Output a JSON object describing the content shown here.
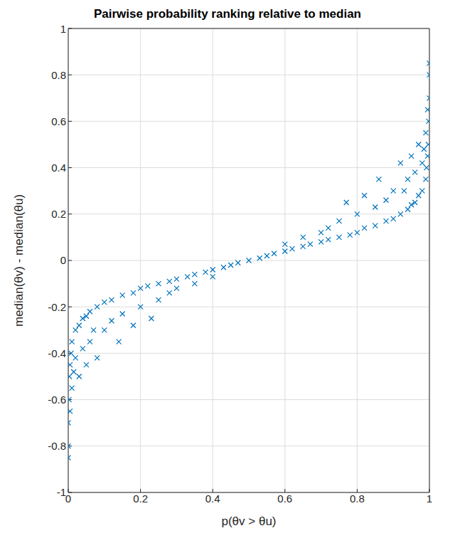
{
  "chart_data": {
    "type": "scatter",
    "title": "Pairwise probability ranking relative to median",
    "x_label": "p(θv > θu)",
    "y_label": "median(θv) - median(θu)",
    "x": [
      0,
      0,
      0,
      0.002,
      0.003,
      0.005,
      0.005,
      0.008,
      0.01,
      0.01,
      0.015,
      0.02,
      0.02,
      0.03,
      0.03,
      0.04,
      0.04,
      0.05,
      0.05,
      0.06,
      0.06,
      0.07,
      0.08,
      0.08,
      0.1,
      0.1,
      0.12,
      0.12,
      0.14,
      0.15,
      0.15,
      0.18,
      0.18,
      0.2,
      0.2,
      0.22,
      0.23,
      0.25,
      0.25,
      0.28,
      0.28,
      0.3,
      0.3,
      0.33,
      0.35,
      0.35,
      0.38,
      0.4,
      0.4,
      0.43,
      0.45,
      0.47,
      0.5,
      0.53,
      0.55,
      0.57,
      0.6,
      0.6,
      0.62,
      0.65,
      0.65,
      0.67,
      0.7,
      0.7,
      0.72,
      0.72,
      0.75,
      0.75,
      0.77,
      0.78,
      0.8,
      0.8,
      0.82,
      0.82,
      0.85,
      0.85,
      0.86,
      0.88,
      0.88,
      0.9,
      0.9,
      0.92,
      0.92,
      0.93,
      0.94,
      0.94,
      0.95,
      0.95,
      0.96,
      0.96,
      0.97,
      0.97,
      0.98,
      0.98,
      0.985,
      0.99,
      0.99,
      0.992,
      0.995,
      0.995,
      0.997,
      0.998,
      1,
      1,
      1
    ],
    "values": [
      -0.85,
      -0.8,
      -0.7,
      -0.6,
      -0.5,
      -0.45,
      -0.65,
      -0.4,
      -0.55,
      -0.35,
      -0.48,
      -0.3,
      -0.42,
      -0.28,
      -0.5,
      -0.25,
      -0.38,
      -0.24,
      -0.45,
      -0.22,
      -0.35,
      -0.3,
      -0.2,
      -0.42,
      -0.18,
      -0.3,
      -0.17,
      -0.26,
      -0.35,
      -0.15,
      -0.23,
      -0.14,
      -0.28,
      -0.12,
      -0.2,
      -0.11,
      -0.25,
      -0.1,
      -0.17,
      -0.09,
      -0.14,
      -0.08,
      -0.12,
      -0.07,
      -0.06,
      -0.1,
      -0.05,
      -0.04,
      -0.07,
      -0.03,
      -0.02,
      -0.01,
      0,
      0.01,
      0.02,
      0.03,
      0.07,
      0.04,
      0.05,
      0.1,
      0.06,
      0.07,
      0.12,
      0.08,
      0.14,
      0.09,
      0.17,
      0.1,
      0.25,
      0.11,
      0.2,
      0.12,
      0.28,
      0.14,
      0.23,
      0.15,
      0.35,
      0.26,
      0.17,
      0.3,
      0.18,
      0.42,
      0.2,
      0.3,
      0.35,
      0.22,
      0.45,
      0.24,
      0.38,
      0.25,
      0.5,
      0.28,
      0.42,
      0.3,
      0.48,
      0.35,
      0.55,
      0.4,
      0.65,
      0.45,
      0.5,
      0.6,
      0.7,
      0.8,
      0.85
    ],
    "color": "#0072bd",
    "marker": "x",
    "xlim": [
      0,
      1
    ],
    "xticks": [
      0,
      0.2,
      0.4,
      0.6,
      0.8,
      1
    ],
    "ylim": [
      -1,
      1
    ],
    "yticks": [
      -1,
      -0.8,
      -0.6,
      -0.4,
      -0.2,
      0,
      0.2,
      0.4,
      0.6,
      0.8,
      1
    ],
    "grid": true
  }
}
